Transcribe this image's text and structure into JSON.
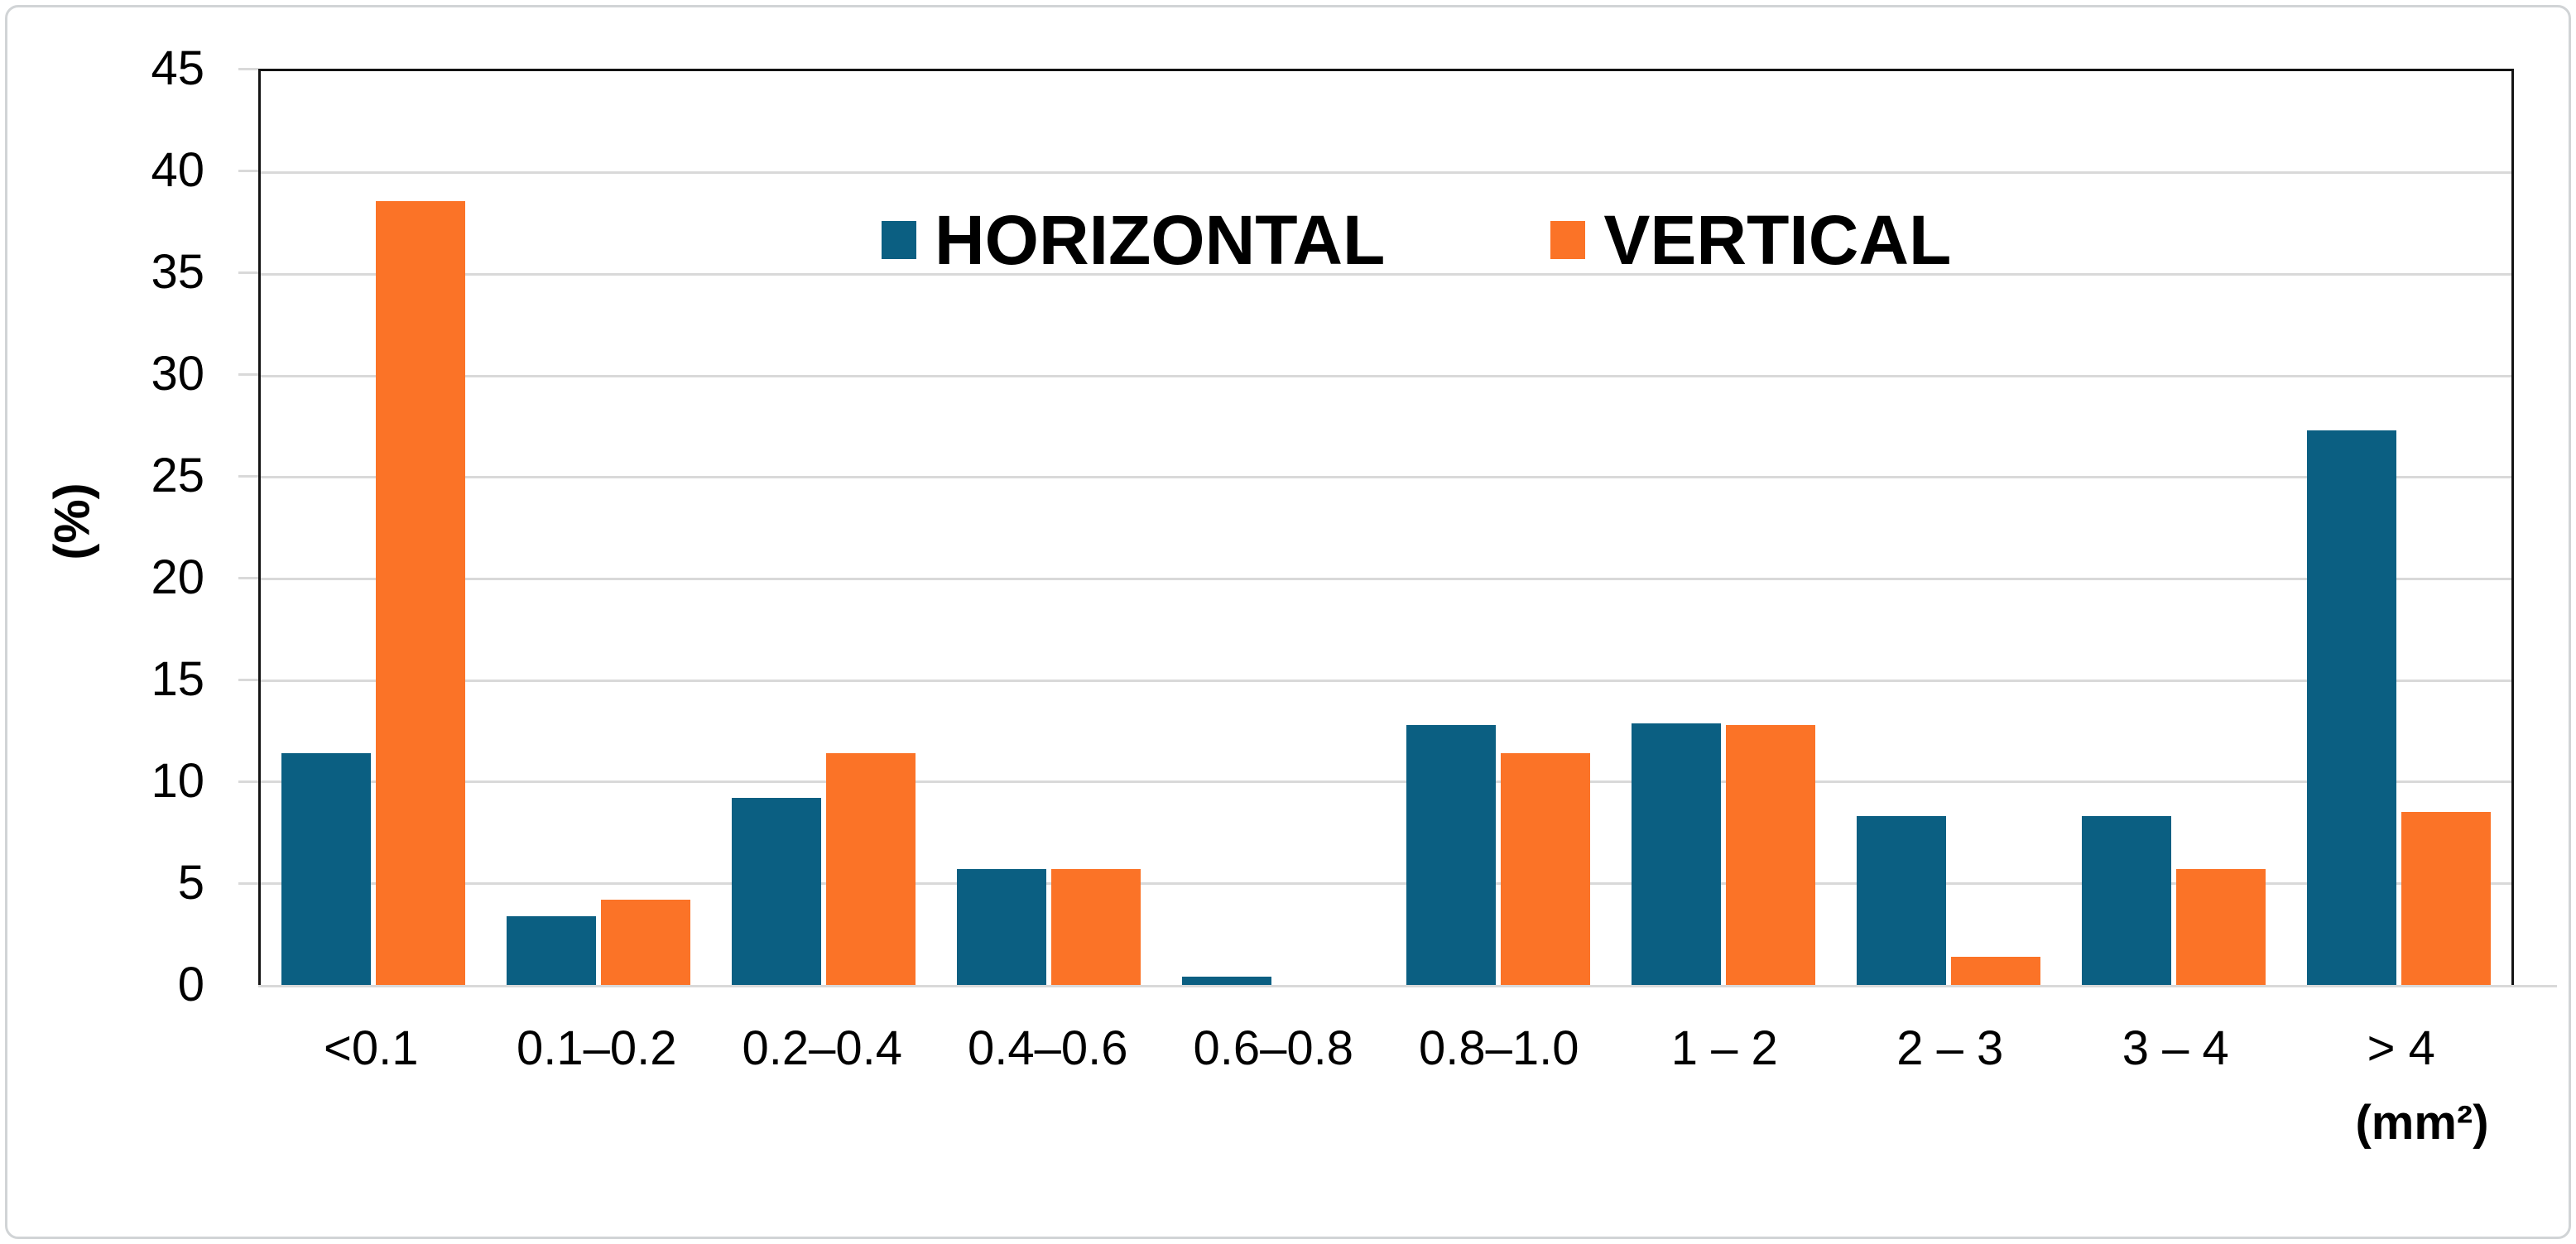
{
  "figure": {
    "background": "#ffffff",
    "frame_color": "#d1d4d6"
  },
  "chart_data": {
    "type": "bar",
    "title": "",
    "ylabel": "(%)",
    "xlabel_unit": "(mm²)",
    "ylim": [
      0,
      45
    ],
    "ytick_step": 5,
    "yticks": [
      0,
      5,
      10,
      15,
      20,
      25,
      30,
      35,
      40,
      45
    ],
    "grid": true,
    "legend_position": "top-center-inside",
    "categories": [
      "<0.1",
      "0.1–0.2",
      "0.2–0.4",
      "0.4–0.6",
      "0.6–0.8",
      "0.8–1.0",
      "1 – 2",
      "2 – 3",
      "3 – 4",
      "> 4"
    ],
    "series": [
      {
        "name": "HORIZONTAL",
        "color": "#0b5f82",
        "values": [
          11.4,
          3.4,
          9.2,
          5.7,
          0.4,
          12.8,
          12.9,
          8.3,
          8.3,
          27.3
        ]
      },
      {
        "name": "VERTICAL",
        "color": "#fb7327",
        "values": [
          38.6,
          4.2,
          11.4,
          5.7,
          0,
          11.4,
          12.8,
          1.4,
          5.7,
          8.5
        ]
      }
    ],
    "colors": {
      "gridline": "#d9d9d9",
      "baseline": "#d9d9d9",
      "plot_border": "#141414",
      "tick_text": "#000000"
    }
  }
}
